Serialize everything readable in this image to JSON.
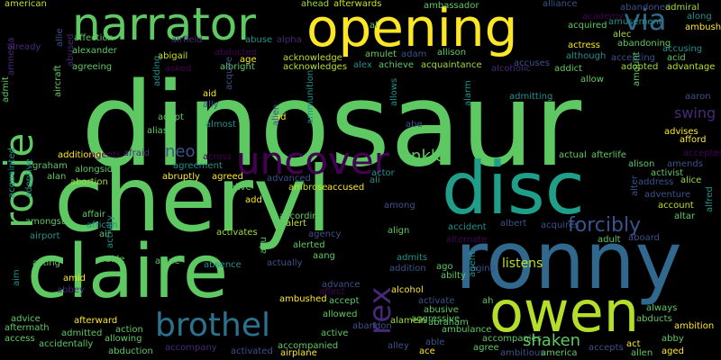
{
  "palette": {
    "background": "#000000",
    "green": "#5ec962",
    "yellow": "#fde725",
    "teal": "#21918c",
    "blue": "#3b528b",
    "purple": "#440154",
    "lime": "#a0da39"
  },
  "words": [
    {
      "text": "dinosaur",
      "c": "#5ec962"
    },
    {
      "text": "cheryl",
      "c": "#5ec962"
    },
    {
      "text": "ronny",
      "c": "#31688e"
    },
    {
      "text": "claire",
      "c": "#5ec962"
    },
    {
      "text": "disc",
      "c": "#1f9e89"
    },
    {
      "text": "opening",
      "c": "#fde725"
    },
    {
      "text": "owen",
      "c": "#b5de2b"
    },
    {
      "text": "narrator",
      "c": "#5ec962"
    },
    {
      "text": "rosie",
      "c": "#5ec962"
    },
    {
      "text": "uncover",
      "c": "#440154"
    },
    {
      "text": "brothel",
      "c": "#2c728e"
    },
    {
      "text": "rex",
      "c": "#482878"
    },
    {
      "text": "via",
      "c": "#31688e"
    },
    {
      "text": "forcibly",
      "c": "#3b528b"
    },
    {
      "text": "neo",
      "c": "#3b528b"
    },
    {
      "text": "ankle",
      "c": "#5ec962"
    },
    {
      "text": "shaken",
      "c": "#5ec962"
    },
    {
      "text": "swing",
      "c": "#482878"
    },
    {
      "text": "listens",
      "c": "#bddf26"
    },
    {
      "text": "american",
      "c": "#bddf26"
    },
    {
      "text": "allie",
      "c": "#3b528b"
    },
    {
      "text": "ahead",
      "c": "#a0da39"
    },
    {
      "text": "afterwards",
      "c": "#c8e020"
    },
    {
      "text": "ambassador",
      "c": "#5ec962"
    },
    {
      "text": "alliance",
      "c": "#3b528b"
    },
    {
      "text": "abandoned",
      "c": "#3b528b"
    },
    {
      "text": "admiral",
      "c": "#a0da39"
    },
    {
      "text": "along",
      "c": "#21918c"
    },
    {
      "text": "ambush",
      "c": "#fde725"
    },
    {
      "text": "already",
      "c": "#482878"
    },
    {
      "text": "abused",
      "c": "#482878"
    },
    {
      "text": "affection",
      "c": "#5ec962"
    },
    {
      "text": "airfield",
      "c": "#482878"
    },
    {
      "text": "abuse",
      "c": "#21918c"
    },
    {
      "text": "alpha",
      "c": "#482878"
    },
    {
      "text": "al",
      "c": "#5ec962"
    },
    {
      "text": "alec",
      "c": "#a0da39"
    },
    {
      "text": "academy",
      "c": "#440154"
    },
    {
      "text": "acquired",
      "c": "#5ec962"
    },
    {
      "text": "abandoning",
      "c": "#5ec962"
    },
    {
      "text": "amusement",
      "c": "#21918c"
    },
    {
      "text": "alexander",
      "c": "#5ec962"
    },
    {
      "text": "abigail",
      "c": "#c8e020"
    },
    {
      "text": "age",
      "c": "#fde725"
    },
    {
      "text": "abducted",
      "c": "#440154"
    },
    {
      "text": "acknowledge",
      "c": "#bddf26"
    },
    {
      "text": "amulet",
      "c": "#5ec962"
    },
    {
      "text": "adam",
      "c": "#3b528b"
    },
    {
      "text": "allison",
      "c": "#5ec962"
    },
    {
      "text": "although",
      "c": "#21918c"
    },
    {
      "text": "accepting",
      "c": "#3b528b"
    },
    {
      "text": "actress",
      "c": "#fde725"
    },
    {
      "text": "accusing",
      "c": "#21918c"
    },
    {
      "text": "acid",
      "c": "#5ec962"
    },
    {
      "text": "agreeing",
      "c": "#5ec962"
    },
    {
      "text": "asked",
      "c": "#440154"
    },
    {
      "text": "albright",
      "c": "#5ec962"
    },
    {
      "text": "acknowledges",
      "c": "#bddf26"
    },
    {
      "text": "alex",
      "c": "#21918c"
    },
    {
      "text": "achieve",
      "c": "#5ec962"
    },
    {
      "text": "acquaintance",
      "c": "#a0da39"
    },
    {
      "text": "accuses",
      "c": "#3b528b"
    },
    {
      "text": "alcoholic",
      "c": "#482878"
    },
    {
      "text": "addict",
      "c": "#5ec962"
    },
    {
      "text": "adopted",
      "c": "#a0da39"
    },
    {
      "text": "advantage",
      "c": "#bddf26"
    },
    {
      "text": "allow",
      "c": "#5ec962"
    },
    {
      "text": "aid",
      "c": "#fde725"
    },
    {
      "text": "ally",
      "c": "#3b528b"
    },
    {
      "text": "acquire",
      "c": "#3b528b"
    },
    {
      "text": "adding",
      "c": "#21918c"
    },
    {
      "text": "adopt",
      "c": "#5ec962"
    },
    {
      "text": "ad",
      "c": "#fde725"
    },
    {
      "text": "alien",
      "c": "#3b528b"
    },
    {
      "text": "ammunition",
      "c": "#21918c"
    },
    {
      "text": "allows",
      "c": "#21918c"
    },
    {
      "text": "alarm",
      "c": "#21918c"
    },
    {
      "text": "abe",
      "c": "#3b528b"
    },
    {
      "text": "admitting",
      "c": "#21918c"
    },
    {
      "text": "amount",
      "c": "#5ec962"
    },
    {
      "text": "aaron",
      "c": "#3b528b"
    },
    {
      "text": "amnesia",
      "c": "#482878"
    },
    {
      "text": "aircraft",
      "c": "#5ec962"
    },
    {
      "text": "admit",
      "c": "#5ec962"
    },
    {
      "text": "alias",
      "c": "#5ec962"
    },
    {
      "text": "almost",
      "c": "#21918c"
    },
    {
      "text": "advises",
      "c": "#fde725"
    },
    {
      "text": "afford",
      "c": "#fde725"
    },
    {
      "text": "additional",
      "c": "#fde725"
    },
    {
      "text": "agents",
      "c": "#440154"
    },
    {
      "text": "afraid",
      "c": "#482878"
    },
    {
      "text": "across",
      "c": "#440154"
    },
    {
      "text": "actual",
      "c": "#5ec962"
    },
    {
      "text": "afterlife",
      "c": "#5ec962"
    },
    {
      "text": "accepted",
      "c": "#440154"
    },
    {
      "text": "graham",
      "c": "#5ec962"
    },
    {
      "text": "agreement",
      "c": "#21918c"
    },
    {
      "text": "alison",
      "c": "#5ec962"
    },
    {
      "text": "amends",
      "c": "#3b528b"
    },
    {
      "text": "alan",
      "c": "#5ec962"
    },
    {
      "text": "alongside",
      "c": "#5ec962"
    },
    {
      "text": "actor",
      "c": "#21918c"
    },
    {
      "text": "activist",
      "c": "#5ec962"
    },
    {
      "text": "abortion",
      "c": "#a0da39"
    },
    {
      "text": "abruptly",
      "c": "#fde725"
    },
    {
      "text": "agreed",
      "c": "#fde725"
    },
    {
      "text": "advanced",
      "c": "#3b528b"
    },
    {
      "text": "ali",
      "c": "#21918c"
    },
    {
      "text": "address",
      "c": "#3b528b"
    },
    {
      "text": "alice",
      "c": "#a0da39"
    },
    {
      "text": "alive",
      "c": "#5ec962"
    },
    {
      "text": "ambrose",
      "c": "#bddf26"
    },
    {
      "text": "accused",
      "c": "#fde725"
    },
    {
      "text": "adventure",
      "c": "#3b528b"
    },
    {
      "text": "add",
      "c": "#fde725"
    },
    {
      "text": "among",
      "c": "#3b528b"
    },
    {
      "text": "account",
      "c": "#bddf26"
    },
    {
      "text": "adoptive",
      "c": "#21918c"
    },
    {
      "text": "acquainted",
      "c": "#21918c"
    },
    {
      "text": "affair",
      "c": "#5ec962"
    },
    {
      "text": "african",
      "c": "#21918c"
    },
    {
      "text": "air",
      "c": "#5ec962"
    },
    {
      "text": "according",
      "c": "#5ec962"
    },
    {
      "text": "alert",
      "c": "#bddf26"
    },
    {
      "text": "albert",
      "c": "#3b528b"
    },
    {
      "text": "acquires",
      "c": "#3b528b"
    },
    {
      "text": "alter",
      "c": "#3b528b"
    },
    {
      "text": "altar",
      "c": "#5ec962"
    },
    {
      "text": "alfred",
      "c": "#21918c"
    },
    {
      "text": "amongst",
      "c": "#5ec962"
    },
    {
      "text": "activates",
      "c": "#a0da39"
    },
    {
      "text": "agency",
      "c": "#3b528b"
    },
    {
      "text": "align",
      "c": "#5ec962"
    },
    {
      "text": "accident",
      "c": "#21918c"
    },
    {
      "text": "alternate",
      "c": "#440154"
    },
    {
      "text": "adult",
      "c": "#5ec962"
    },
    {
      "text": "aboard",
      "c": "#3b528b"
    },
    {
      "text": "airport",
      "c": "#21918c"
    },
    {
      "text": "aide",
      "c": "#5ec962"
    },
    {
      "text": "alone",
      "c": "#5ec962"
    },
    {
      "text": "abu",
      "c": "#5ec962"
    },
    {
      "text": "actually",
      "c": "#3b528b"
    },
    {
      "text": "alerted",
      "c": "#5ec962"
    },
    {
      "text": "aang",
      "c": "#5ec962"
    },
    {
      "text": "admits",
      "c": "#21918c"
    },
    {
      "text": "ago",
      "c": "#5ec962"
    },
    {
      "text": "aging",
      "c": "#3b528b"
    },
    {
      "text": "acting",
      "c": "#5ec962"
    },
    {
      "text": "activity",
      "c": "#21918c"
    },
    {
      "text": "absence",
      "c": "#21918c"
    },
    {
      "text": "abilty",
      "c": "#5ec962"
    },
    {
      "text": "addition",
      "c": "#3b528b"
    },
    {
      "text": "aim",
      "c": "#21918c"
    },
    {
      "text": "abbey",
      "c": "#482878"
    },
    {
      "text": "amid",
      "c": "#fde725"
    },
    {
      "text": "ambushed",
      "c": "#fde725"
    },
    {
      "text": "advance",
      "c": "#3b528b"
    },
    {
      "text": "affect",
      "c": "#440154"
    },
    {
      "text": "alcohol",
      "c": "#fde725"
    },
    {
      "text": "activate",
      "c": "#3b528b"
    },
    {
      "text": "agent",
      "c": "#21918c"
    },
    {
      "text": "ah",
      "c": "#5ec962"
    },
    {
      "text": "always",
      "c": "#5ec962"
    },
    {
      "text": "accept",
      "c": "#5ec962"
    },
    {
      "text": "abusive",
      "c": "#5ec962"
    },
    {
      "text": "aggressive",
      "c": "#5ec962"
    },
    {
      "text": "abducts",
      "c": "#5ec962"
    },
    {
      "text": "advice",
      "c": "#5ec962"
    },
    {
      "text": "aftermath",
      "c": "#5ec962"
    },
    {
      "text": "afterward",
      "c": "#fde725"
    },
    {
      "text": "allowed",
      "c": "#5ec962"
    },
    {
      "text": "alamein",
      "c": "#a0da39"
    },
    {
      "text": "abraham",
      "c": "#5ec962"
    },
    {
      "text": "ambition",
      "c": "#fde725"
    },
    {
      "text": "abandon",
      "c": "#3b528b"
    },
    {
      "text": "action",
      "c": "#5ec962"
    },
    {
      "text": "active",
      "c": "#5ec962"
    },
    {
      "text": "ambulance",
      "c": "#5ec962"
    },
    {
      "text": "access",
      "c": "#5ec962"
    },
    {
      "text": "admitted",
      "c": "#5ec962"
    },
    {
      "text": "allowing",
      "c": "#5ec962"
    },
    {
      "text": "accompanied",
      "c": "#5ec962"
    },
    {
      "text": "alley",
      "c": "#3b528b"
    },
    {
      "text": "able",
      "c": "#3b528b"
    },
    {
      "text": "accompanies",
      "c": "#5ec962"
    },
    {
      "text": "abby",
      "c": "#5ec962"
    },
    {
      "text": "accidentally",
      "c": "#5ec962"
    },
    {
      "text": "accompany",
      "c": "#482878"
    },
    {
      "text": "act",
      "c": "#fde725"
    },
    {
      "text": "agree",
      "c": "#5ec962"
    },
    {
      "text": "abduction",
      "c": "#5ec962"
    },
    {
      "text": "activated",
      "c": "#3b528b"
    },
    {
      "text": "airplane",
      "c": "#fde725"
    },
    {
      "text": "ace",
      "c": "#fde725"
    },
    {
      "text": "ambitious",
      "c": "#3b528b"
    },
    {
      "text": "america",
      "c": "#5ec962"
    },
    {
      "text": "accepts",
      "c": "#3b528b"
    },
    {
      "text": "allen",
      "c": "#5ec962"
    },
    {
      "text": "aged",
      "c": "#fde725"
    }
  ]
}
